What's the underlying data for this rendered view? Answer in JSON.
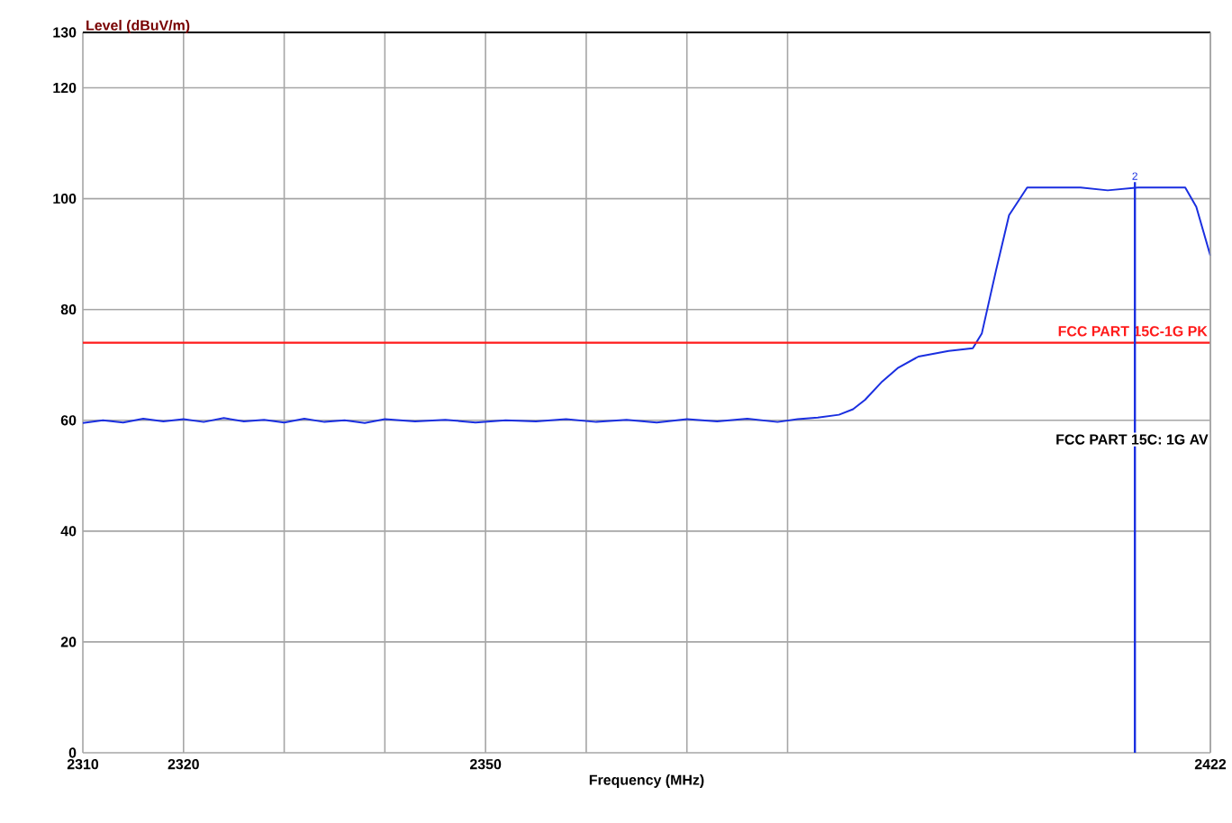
{
  "chart_data": {
    "type": "line",
    "ylabel": "Level (dBuV/m)",
    "xlabel": "Frequency (MHz)",
    "xlim": [
      2310,
      2422
    ],
    "ylim": [
      0,
      130
    ],
    "xticks": [
      2310,
      2320,
      {
        "value": 2330,
        "label": null
      },
      {
        "value": 2340,
        "label": null
      },
      2350,
      {
        "value": 2360,
        "label": null
      },
      {
        "value": 2370,
        "label": null
      },
      {
        "value": 2380,
        "label": null
      },
      2422
    ],
    "yticks": [
      0,
      20,
      40,
      60,
      80,
      100,
      120,
      130
    ],
    "grid": true,
    "line_style": "solid",
    "marker": "none",
    "series": [
      {
        "color": "#1a2fe0",
        "x": [
          2310,
          2312,
          2314,
          2316,
          2318,
          2320,
          2322,
          2324,
          2326,
          2328,
          2330,
          2332,
          2334,
          2336,
          2338,
          2340,
          2343,
          2346,
          2349,
          2352,
          2355,
          2358,
          2361,
          2364,
          2367,
          2370,
          2373,
          2376,
          2379,
          2381,
          2383,
          2385.1,
          2386.5,
          2387.7,
          2389.4,
          2391,
          2393,
          2396,
          2398.4,
          2399.3,
          2400.7,
          2402,
          2403.8,
          2409.1,
          2411.8,
          2414.8,
          2419.5,
          2420.6,
          2422
        ],
        "values": [
          59.5,
          60,
          59.6,
          60.3,
          59.8,
          60.2,
          59.7,
          60.4,
          59.8,
          60.1,
          59.6,
          60.3,
          59.7,
          60,
          59.5,
          60.2,
          59.8,
          60.1,
          59.6,
          60,
          59.8,
          60.2,
          59.7,
          60.1,
          59.6,
          60.2,
          59.8,
          60.3,
          59.7,
          60.2,
          60.5,
          61,
          62,
          63.7,
          67,
          69.5,
          71.5,
          72.5,
          73,
          75.7,
          87,
          97,
          102,
          102,
          101.5,
          102,
          102,
          98.5,
          89.7
        ]
      }
    ],
    "ref_lines": [
      {
        "axis": "y",
        "value": 74,
        "label": "FCC PART 15C-1G PK",
        "color": "#ff1a1a"
      },
      {
        "axis": "x",
        "value": 2414.5,
        "color": "#1a2fe0"
      }
    ],
    "annotations": [
      "FCC PART 15C: 1G AV",
      {
        "text": "2",
        "x": 2414.5,
        "y": 103
      }
    ]
  }
}
